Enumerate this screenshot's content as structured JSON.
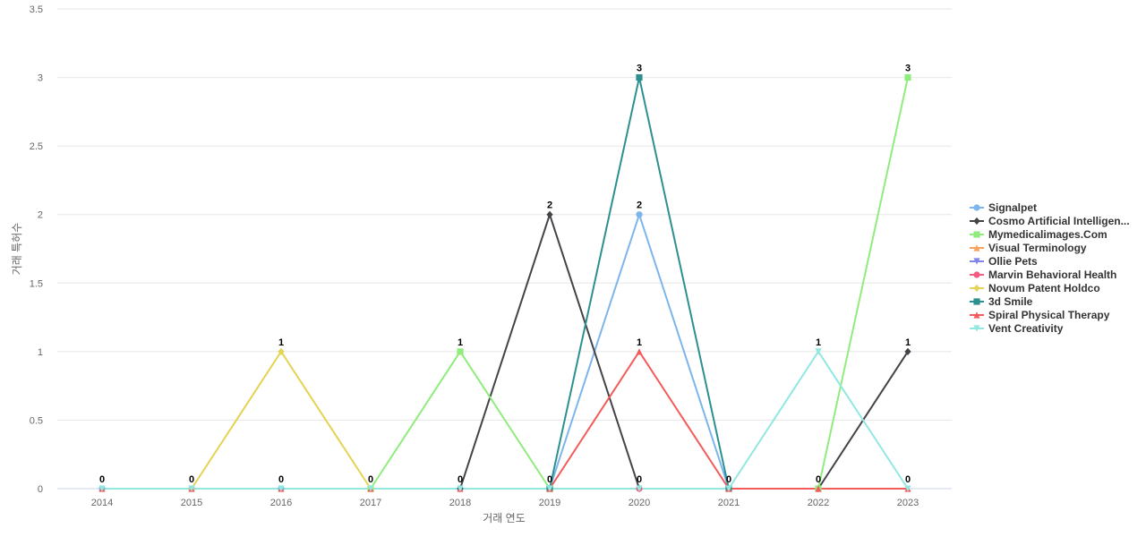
{
  "chart_data": {
    "type": "line",
    "title": "",
    "xlabel": "거래 연도",
    "ylabel": "거래 특허수",
    "categories": [
      "2014",
      "2015",
      "2016",
      "2017",
      "2018",
      "2019",
      "2020",
      "2021",
      "2022",
      "2023"
    ],
    "ylim": [
      0,
      3.5
    ],
    "yticks": [
      "0",
      "0.5",
      "1",
      "1.5",
      "2",
      "2.5",
      "3",
      "3.5"
    ],
    "grid": true,
    "legend_position": "right",
    "series": [
      {
        "name": "Signalpet",
        "color": "#7cb5ec",
        "marker": "circle",
        "values": [
          0,
          0,
          0,
          0,
          0,
          0,
          2,
          0,
          null,
          null
        ]
      },
      {
        "name": "Cosmo Artificial Intelligen...",
        "color": "#434348",
        "marker": "diamond",
        "values": [
          null,
          null,
          null,
          null,
          0,
          2,
          0,
          null,
          0,
          1
        ]
      },
      {
        "name": "Mymedicalimages.Com",
        "color": "#90ed7d",
        "marker": "square",
        "values": [
          null,
          null,
          null,
          0,
          1,
          0,
          null,
          null,
          0,
          3
        ]
      },
      {
        "name": "Visual Terminology",
        "color": "#f7a35c",
        "marker": "triangle",
        "values": [
          null,
          null,
          null,
          null,
          null,
          null,
          null,
          null,
          null,
          null
        ]
      },
      {
        "name": "Ollie Pets",
        "color": "#8085e9",
        "marker": "triangle-down",
        "values": [
          null,
          null,
          null,
          null,
          null,
          null,
          null,
          null,
          null,
          null
        ]
      },
      {
        "name": "Marvin Behavioral Health",
        "color": "#f15c80",
        "marker": "circle",
        "values": [
          null,
          null,
          null,
          null,
          null,
          null,
          0,
          null,
          null,
          null
        ]
      },
      {
        "name": "Novum Patent Holdco",
        "color": "#e4d354",
        "marker": "diamond",
        "values": [
          null,
          0,
          1,
          0,
          null,
          null,
          null,
          null,
          null,
          null
        ]
      },
      {
        "name": "3d Smile",
        "color": "#2b908f",
        "marker": "square",
        "values": [
          null,
          null,
          null,
          null,
          null,
          0,
          3,
          0,
          null,
          null
        ]
      },
      {
        "name": "Spiral Physical Therapy",
        "color": "#f45b5b",
        "marker": "triangle",
        "values": [
          0,
          0,
          0,
          0,
          0,
          0,
          1,
          0,
          0,
          0
        ]
      },
      {
        "name": "Vent Creativity",
        "color": "#91e8e1",
        "marker": "triangle-down",
        "values": [
          0,
          0,
          0,
          0,
          0,
          0,
          0,
          0,
          1,
          0
        ]
      }
    ],
    "data_labels": [
      {
        "x": "2014",
        "series": "Vent Creativity",
        "text": "0"
      },
      {
        "x": "2015",
        "series": "Vent Creativity",
        "text": "0"
      },
      {
        "x": "2016",
        "series": "Novum Patent Holdco",
        "text": "1"
      },
      {
        "x": "2016",
        "series": "Vent Creativity",
        "text": "0"
      },
      {
        "x": "2017",
        "series": "Vent Creativity",
        "text": "0"
      },
      {
        "x": "2018",
        "series": "Mymedicalimages.Com",
        "text": "1"
      },
      {
        "x": "2018",
        "series": "Vent Creativity",
        "text": "0"
      },
      {
        "x": "2019",
        "series": "Cosmo Artificial Intelligen...",
        "text": "2"
      },
      {
        "x": "2019",
        "series": "Vent Creativity",
        "text": "0"
      },
      {
        "x": "2020",
        "series": "3d Smile",
        "text": "3"
      },
      {
        "x": "2020",
        "series": "Signalpet",
        "text": "2"
      },
      {
        "x": "2020",
        "series": "Spiral Physical Therapy",
        "text": "1"
      },
      {
        "x": "2020",
        "series": "Vent Creativity",
        "text": "0"
      },
      {
        "x": "2021",
        "series": "Vent Creativity",
        "text": "0"
      },
      {
        "x": "2022",
        "series": "Vent Creativity",
        "text": "1"
      },
      {
        "x": "2022",
        "series": "Cosmo Artificial Intelligen...",
        "text": "0"
      },
      {
        "x": "2023",
        "series": "Mymedicalimages.Com",
        "text": "3"
      },
      {
        "x": "2023",
        "series": "Cosmo Artificial Intelligen...",
        "text": "1"
      },
      {
        "x": "2023",
        "series": "Vent Creativity",
        "text": "0"
      }
    ]
  }
}
